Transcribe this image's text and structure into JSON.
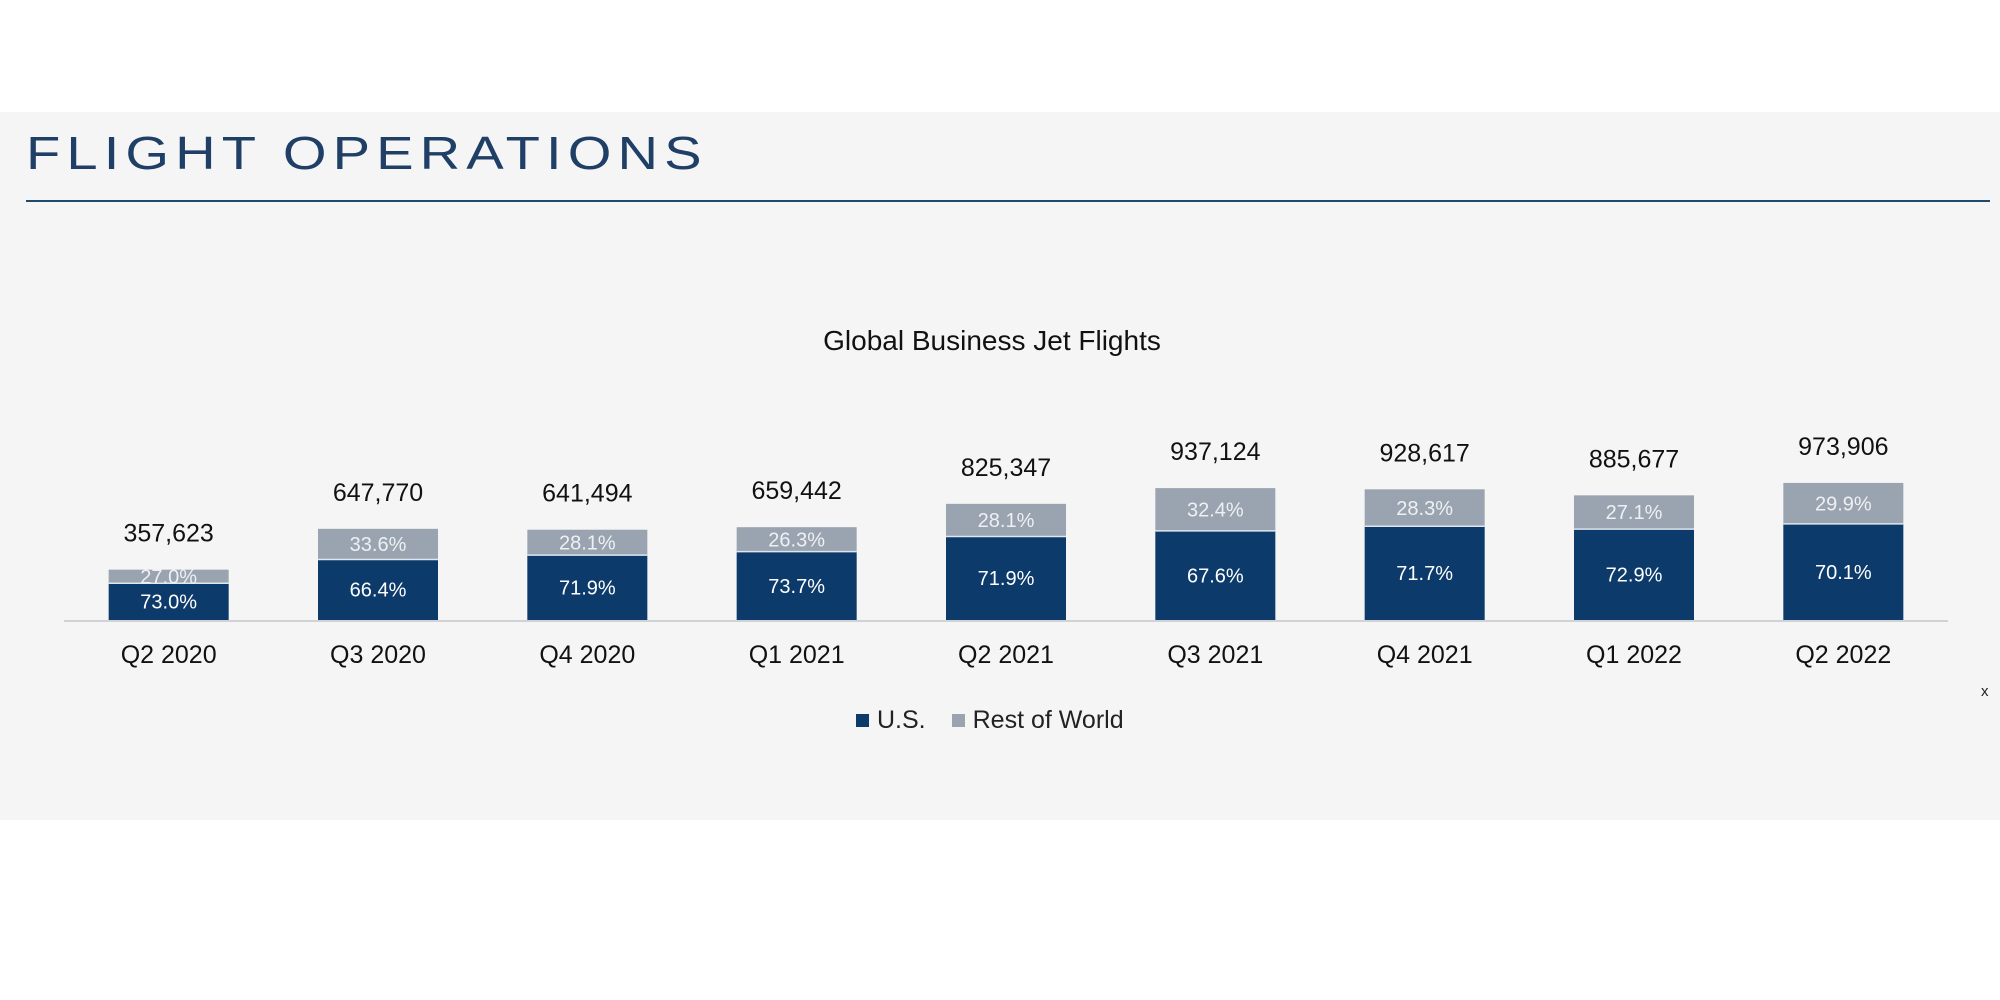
{
  "header": {
    "title": "FLIGHT OPERATIONS"
  },
  "chart_data": {
    "type": "bar",
    "stacked": true,
    "title": "Global Business Jet Flights",
    "categories": [
      "Q2 2020",
      "Q3 2020",
      "Q4 2020",
      "Q1 2021",
      "Q2 2021",
      "Q3 2021",
      "Q4 2021",
      "Q1 2022",
      "Q2 2022"
    ],
    "totals": [
      357623,
      647770,
      641494,
      659442,
      825347,
      937124,
      928617,
      885677,
      973906
    ],
    "total_labels": [
      "357,623",
      "647,770",
      "641,494",
      "659,442",
      "825,347",
      "937,124",
      "928,617",
      "885,677",
      "973,906"
    ],
    "series": [
      {
        "name": "U.S.",
        "color": "#0b3a6b",
        "percent": [
          73.0,
          66.4,
          71.9,
          73.7,
          71.9,
          67.6,
          71.7,
          72.9,
          70.1
        ],
        "labels": [
          "73.0%",
          "66.4%",
          "71.9%",
          "73.7%",
          "71.9%",
          "67.6%",
          "71.7%",
          "72.9%",
          "70.1%"
        ]
      },
      {
        "name": "Rest of World",
        "color": "#9aa4b0",
        "percent": [
          27.0,
          33.6,
          28.1,
          26.3,
          28.1,
          32.4,
          28.3,
          27.1,
          29.9
        ],
        "labels": [
          "27.0%",
          "33.6%",
          "28.1%",
          "26.3%",
          "28.1%",
          "32.4%",
          "28.3%",
          "27.1%",
          "29.9%"
        ]
      }
    ],
    "ylim": [
      0,
      2700000
    ],
    "grid": false,
    "y_axis_visible": false,
    "legend_position": "bottom"
  },
  "footer_mark": "x"
}
